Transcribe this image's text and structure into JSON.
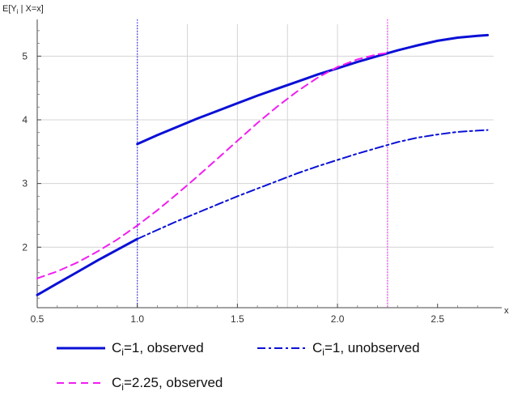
{
  "chart_data": {
    "type": "line",
    "title": "",
    "ylabel": "E[Y",
    "ylabel_sub": "i",
    "ylabel_rest": " | X=x]",
    "xlabel": "x",
    "xlim": [
      0.5,
      2.78
    ],
    "ylim": [
      1.05,
      5.5
    ],
    "x_ticks": [
      0.5,
      1.0,
      1.5,
      2.0,
      2.5
    ],
    "x_tick_labels": [
      "0.5",
      "1.0",
      "1.5",
      "2.0",
      "2.5"
    ],
    "y_ticks": [
      2,
      3,
      4,
      5
    ],
    "y_tick_labels": [
      "2",
      "3",
      "4",
      "5"
    ],
    "grid_x": [
      1.0,
      1.25,
      1.5,
      1.75,
      2.0,
      2.25
    ],
    "grid_y": [
      2,
      3,
      4,
      5
    ],
    "vlines": [
      {
        "x": 1.0,
        "color": "#3b3bff"
      },
      {
        "x": 2.25,
        "color": "#ff33ff"
      }
    ],
    "series": [
      {
        "legend_prefix": "C",
        "legend_sub": "i",
        "legend_rest": "=1, observed",
        "color": "#0a10d6",
        "style": "solid",
        "segments": [
          [
            [
              0.5,
              1.25
            ],
            [
              0.6,
              1.43
            ],
            [
              0.7,
              1.61
            ],
            [
              0.8,
              1.79
            ],
            [
              0.9,
              1.96
            ],
            [
              1.0,
              2.13
            ]
          ],
          [
            [
              1.0,
              3.62
            ],
            [
              1.1,
              3.76
            ],
            [
              1.2,
              3.89
            ],
            [
              1.3,
              4.02
            ],
            [
              1.4,
              4.14
            ],
            [
              1.5,
              4.26
            ],
            [
              1.6,
              4.38
            ],
            [
              1.7,
              4.49
            ],
            [
              1.8,
              4.6
            ],
            [
              1.9,
              4.71
            ],
            [
              2.0,
              4.81
            ],
            [
              2.1,
              4.91
            ],
            [
              2.2,
              5.0
            ],
            [
              2.3,
              5.09
            ],
            [
              2.4,
              5.17
            ],
            [
              2.5,
              5.24
            ],
            [
              2.6,
              5.29
            ],
            [
              2.7,
              5.32
            ],
            [
              2.75,
              5.33
            ]
          ]
        ]
      },
      {
        "legend_prefix": "C",
        "legend_sub": "i",
        "legend_rest": "=1, unobserved",
        "color": "#0a10d6",
        "style": "dashdot",
        "segments": [
          [
            [
              1.0,
              2.13
            ],
            [
              1.1,
              2.27
            ],
            [
              1.2,
              2.41
            ],
            [
              1.3,
              2.54
            ],
            [
              1.4,
              2.67
            ],
            [
              1.5,
              2.8
            ],
            [
              1.6,
              2.92
            ],
            [
              1.7,
              3.04
            ],
            [
              1.8,
              3.16
            ],
            [
              1.9,
              3.27
            ],
            [
              2.0,
              3.37
            ],
            [
              2.1,
              3.47
            ],
            [
              2.2,
              3.56
            ],
            [
              2.3,
              3.65
            ],
            [
              2.4,
              3.72
            ],
            [
              2.5,
              3.77
            ],
            [
              2.6,
              3.81
            ],
            [
              2.7,
              3.83
            ],
            [
              2.75,
              3.84
            ]
          ]
        ]
      },
      {
        "legend_prefix": "C",
        "legend_sub": "i",
        "legend_rest": "=2.25, observed",
        "color": "#f21df2",
        "style": "dashed",
        "segments": [
          [
            [
              0.5,
              1.51
            ],
            [
              0.6,
              1.62
            ],
            [
              0.7,
              1.76
            ],
            [
              0.8,
              1.93
            ],
            [
              0.9,
              2.12
            ],
            [
              1.0,
              2.34
            ],
            [
              1.1,
              2.58
            ],
            [
              1.2,
              2.84
            ],
            [
              1.3,
              3.11
            ],
            [
              1.4,
              3.39
            ],
            [
              1.5,
              3.67
            ],
            [
              1.6,
              3.95
            ],
            [
              1.7,
              4.21
            ],
            [
              1.8,
              4.45
            ],
            [
              1.9,
              4.66
            ],
            [
              2.0,
              4.83
            ],
            [
              2.1,
              4.95
            ],
            [
              2.2,
              5.03
            ],
            [
              2.25,
              5.05
            ]
          ]
        ]
      }
    ],
    "legend_position": "bottom"
  }
}
